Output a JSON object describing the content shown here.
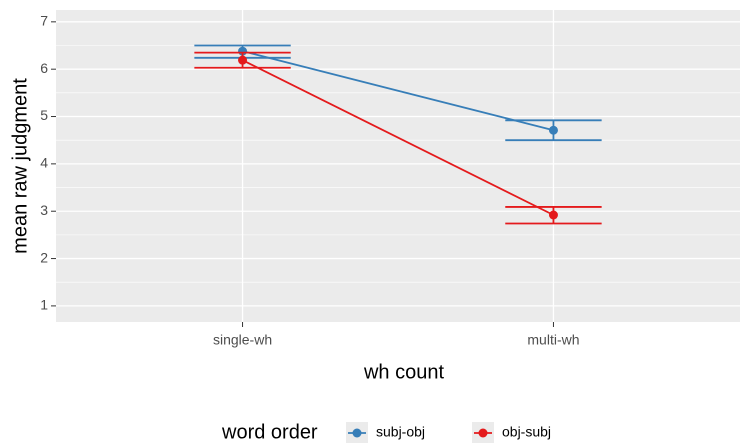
{
  "chart_data": {
    "type": "line",
    "xlabel": "wh count",
    "ylabel": "mean raw judgment",
    "categories": [
      "single-wh",
      "multi-wh"
    ],
    "series": [
      {
        "name": "subj-obj",
        "color": "#377eb8",
        "values": [
          6.38,
          4.71
        ],
        "lower": [
          6.24,
          4.5
        ],
        "upper": [
          6.5,
          4.92
        ]
      },
      {
        "name": "obj-subj",
        "color": "#e41a1c",
        "values": [
          6.19,
          2.92
        ],
        "lower": [
          6.03,
          2.74
        ],
        "upper": [
          6.35,
          3.09
        ]
      }
    ],
    "ylim": [
      0.66,
      7.25
    ],
    "yticks": [
      1,
      2,
      3,
      4,
      5,
      6,
      7
    ],
    "grid": true,
    "legend": {
      "title": "word order",
      "position": "bottom"
    }
  }
}
